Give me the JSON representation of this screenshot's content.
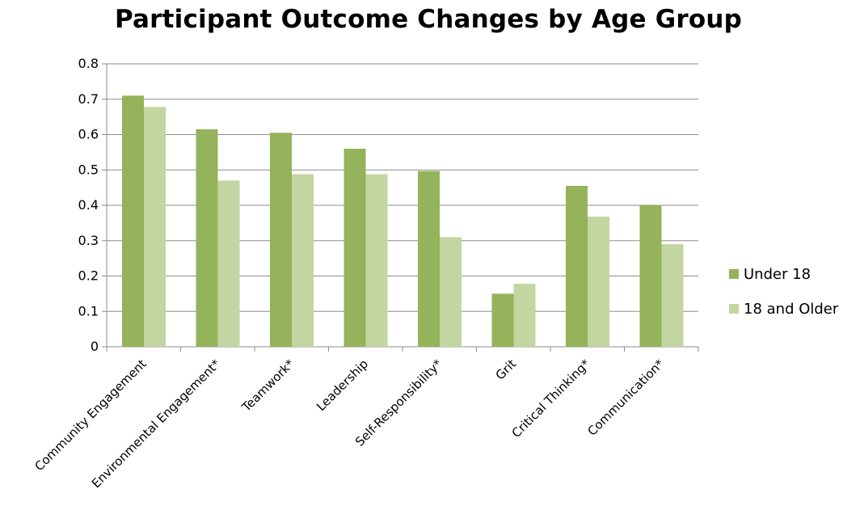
{
  "chart_data": {
    "type": "bar",
    "title": "Participant Outcome Changes by Age Group",
    "xlabel": "",
    "ylabel": "",
    "ylim": [
      0,
      0.8
    ],
    "yticks": [
      "0",
      "0.1",
      "0.2",
      "0.3",
      "0.4",
      "0.5",
      "0.6",
      "0.7",
      "0.8"
    ],
    "grid": true,
    "legend_position": "right",
    "categories": [
      "Community Engagement",
      "Environmental Engagement*",
      "Teamwork*",
      "Leadership",
      "Self-Responsibility*",
      "Grit",
      "Critical Thinking*",
      "Communication*"
    ],
    "series": [
      {
        "name": "Under 18",
        "color": "#94b35a",
        "values": [
          0.71,
          0.615,
          0.605,
          0.56,
          0.497,
          0.15,
          0.455,
          0.4
        ]
      },
      {
        "name": "18 and Older",
        "color": "#c3d5a0",
        "values": [
          0.678,
          0.47,
          0.488,
          0.488,
          0.31,
          0.178,
          0.368,
          0.29
        ]
      }
    ]
  }
}
